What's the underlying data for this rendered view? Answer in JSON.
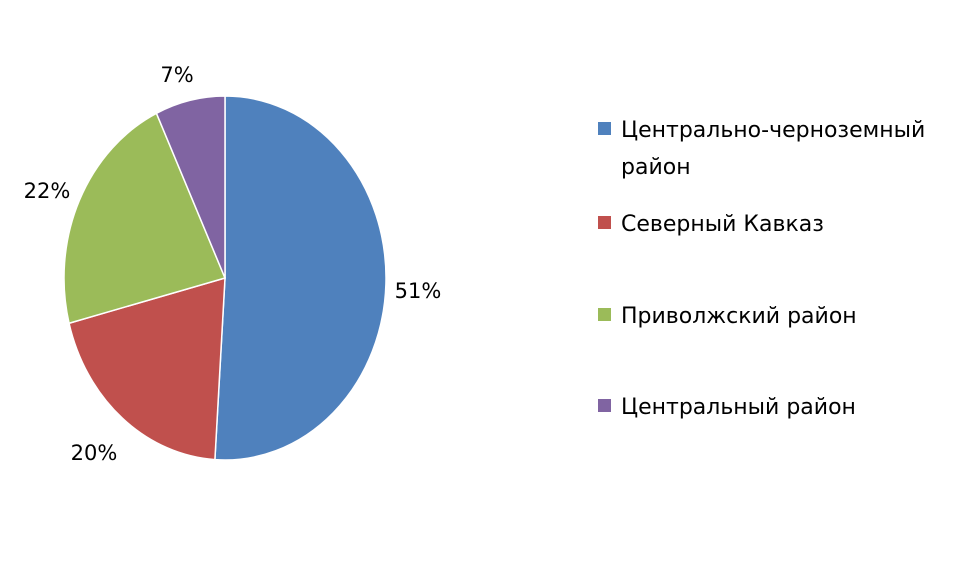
{
  "chart_data": {
    "type": "pie",
    "title": "",
    "slices": [
      {
        "label": "Центрально-черноземный район",
        "value": 51,
        "display": "51%",
        "color": "#4F81BD"
      },
      {
        "label": "Северный Кавказ",
        "value": 20,
        "display": "20%",
        "color": "#C0504D"
      },
      {
        "label": "Приволжский район",
        "value": 22,
        "display": "22%",
        "color": "#9BBB59"
      },
      {
        "label": "Центральный район",
        "value": 7,
        "display": "7%",
        "color": "#8064A2"
      }
    ],
    "legend_position": "right",
    "start_angle_deg": 0,
    "direction": "clockwise"
  }
}
